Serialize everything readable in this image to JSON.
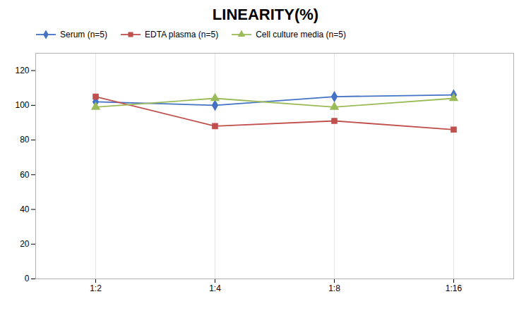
{
  "chart_data": {
    "type": "line",
    "title": "LINEARITY(%)",
    "categories": [
      "1:2",
      "1:4",
      "1:8",
      "1:16"
    ],
    "series": [
      {
        "name": "Serum (n=5)",
        "color": "#4472C4",
        "values": [
          102,
          100,
          105,
          106
        ],
        "marker": "diamond",
        "line_style": "solid"
      },
      {
        "name": "EDTA plasma (n=5)",
        "color": "#C0504D",
        "values": [
          105,
          88,
          91,
          86
        ],
        "marker": "square",
        "line_style": "solid"
      },
      {
        "name": "Cell culture media (n=5)",
        "color": "#9BBB59",
        "values": [
          99,
          104,
          99,
          104
        ],
        "marker": "triangle",
        "line_style": "solid"
      }
    ],
    "ylim": [
      0,
      130
    ],
    "yticks": [
      0,
      20,
      40,
      60,
      80,
      100,
      120
    ],
    "grid": "x",
    "legend": "top"
  }
}
